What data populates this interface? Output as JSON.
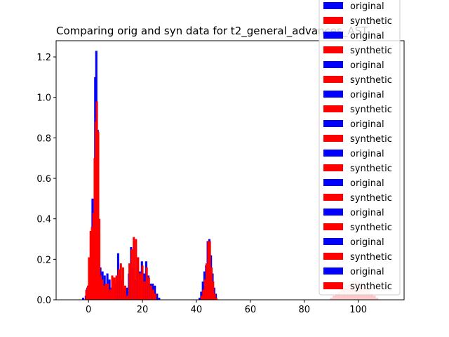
{
  "chart_data": {
    "type": "bar",
    "title": "Comparing orig and syn data for t2_general_advances_AST",
    "xlabel": "",
    "ylabel": "",
    "xlim": [
      -12,
      117
    ],
    "ylim": [
      0,
      1.28
    ],
    "xticks": [
      0,
      20,
      40,
      60,
      80,
      100
    ],
    "yticks": [
      0.0,
      0.2,
      0.4,
      0.6,
      0.8,
      1.0,
      1.2
    ],
    "grid": false,
    "legend_position": "upper right",
    "colors": {
      "original": "#0000ff",
      "synthetic": "#ff0000",
      "faded_synthetic": "#ffc8c8"
    },
    "series": [
      {
        "name": "original",
        "bin_width": 0.8,
        "points": [
          [
            -2,
            0.01
          ],
          [
            -1,
            0.02
          ],
          [
            -0.4,
            0.06
          ],
          [
            0.4,
            0.03
          ],
          [
            1.0,
            0.13
          ],
          [
            1.5,
            0.5
          ],
          [
            2.0,
            0.3
          ],
          [
            2.5,
            1.1
          ],
          [
            2.9,
            1.23
          ],
          [
            3.4,
            0.84
          ],
          [
            3.8,
            0.27
          ],
          [
            4.4,
            0.16
          ],
          [
            5.2,
            0.14
          ],
          [
            6.0,
            0.12
          ],
          [
            7.0,
            0.13
          ],
          [
            7.8,
            0.1
          ],
          [
            8.6,
            0.06
          ],
          [
            9.4,
            0.04
          ],
          [
            10.2,
            0.08
          ],
          [
            11.0,
            0.23
          ],
          [
            11.8,
            0.15
          ],
          [
            12.6,
            0.1
          ],
          [
            13.4,
            0.05
          ],
          [
            14.2,
            0.06
          ],
          [
            15.0,
            0.13
          ],
          [
            15.8,
            0.26
          ],
          [
            16.6,
            0.16
          ],
          [
            17.4,
            0.1
          ],
          [
            18.2,
            0.21
          ],
          [
            19.0,
            0.14
          ],
          [
            19.8,
            0.19
          ],
          [
            20.6,
            0.13
          ],
          [
            21.4,
            0.19
          ],
          [
            22.2,
            0.12
          ],
          [
            23.0,
            0.08
          ],
          [
            23.8,
            0.08
          ],
          [
            24.6,
            0.07
          ],
          [
            25.4,
            0.03
          ],
          [
            26.2,
            0.01
          ],
          [
            41.2,
            0.01
          ],
          [
            41.8,
            0.04
          ],
          [
            42.4,
            0.09
          ],
          [
            43.0,
            0.14
          ],
          [
            43.6,
            0.17
          ],
          [
            44.2,
            0.29
          ],
          [
            44.8,
            0.3
          ],
          [
            45.4,
            0.22
          ],
          [
            46.0,
            0.13
          ],
          [
            46.6,
            0.06
          ],
          [
            47.2,
            0.03
          ]
        ]
      },
      {
        "name": "synthetic",
        "bin_width": 0.8,
        "points": [
          [
            -0.8,
            0.05
          ],
          [
            -0.2,
            0.07
          ],
          [
            0.2,
            0.21
          ],
          [
            0.8,
            0.34
          ],
          [
            1.3,
            0.36
          ],
          [
            1.8,
            0.43
          ],
          [
            2.3,
            0.7
          ],
          [
            2.7,
            0.88
          ],
          [
            3.1,
            0.98
          ],
          [
            3.6,
            0.83
          ],
          [
            4.0,
            0.4
          ],
          [
            4.5,
            0.12
          ],
          [
            5.1,
            0.1
          ],
          [
            5.8,
            0.07
          ],
          [
            6.5,
            0.08
          ],
          [
            7.2,
            0.08
          ],
          [
            8.0,
            0.05
          ],
          [
            8.8,
            0.12
          ],
          [
            9.6,
            0.11
          ],
          [
            10.4,
            0.12
          ],
          [
            11.2,
            0.15
          ],
          [
            12.0,
            0.18
          ],
          [
            12.8,
            0.16
          ],
          [
            13.6,
            0.07
          ],
          [
            14.4,
            0.02
          ],
          [
            15.2,
            0.18
          ],
          [
            16.0,
            0.25
          ],
          [
            16.8,
            0.31
          ],
          [
            17.6,
            0.3
          ],
          [
            18.4,
            0.21
          ],
          [
            19.2,
            0.13
          ],
          [
            20.0,
            0.17
          ],
          [
            20.8,
            0.09
          ],
          [
            21.6,
            0.16
          ],
          [
            22.4,
            0.11
          ],
          [
            23.2,
            0.07
          ],
          [
            24.0,
            0.05
          ],
          [
            24.8,
            0.03
          ],
          [
            42.0,
            0.02
          ],
          [
            42.6,
            0.05
          ],
          [
            43.2,
            0.1
          ],
          [
            43.8,
            0.18
          ],
          [
            44.4,
            0.29
          ],
          [
            45.0,
            0.29
          ],
          [
            45.6,
            0.16
          ],
          [
            46.2,
            0.09
          ],
          [
            46.8,
            0.03
          ],
          [
            47.4,
            0.01
          ]
        ]
      },
      {
        "name": "synthetic (faded)",
        "bin_width": 1.0,
        "points": [
          [
            90,
            0.01
          ],
          [
            91,
            0.02
          ],
          [
            92,
            0.03
          ],
          [
            93,
            0.04
          ],
          [
            94,
            0.05
          ],
          [
            95,
            0.06
          ],
          [
            96,
            0.07
          ],
          [
            97,
            0.08
          ],
          [
            98,
            0.09
          ],
          [
            99,
            0.1
          ],
          [
            100,
            0.09
          ],
          [
            101,
            0.08
          ],
          [
            102,
            0.07
          ],
          [
            103,
            0.06
          ],
          [
            104,
            0.05
          ],
          [
            105,
            0.03
          ],
          [
            106,
            0.02
          ],
          [
            107,
            0.01
          ]
        ]
      }
    ],
    "legend_entries": [
      {
        "label": "original",
        "color": "#0000ff"
      },
      {
        "label": "synthetic",
        "color": "#ff0000"
      },
      {
        "label": "original",
        "color": "#0000ff"
      },
      {
        "label": "synthetic",
        "color": "#ff0000"
      },
      {
        "label": "original",
        "color": "#0000ff"
      },
      {
        "label": "synthetic",
        "color": "#ff0000"
      },
      {
        "label": "original",
        "color": "#0000ff"
      },
      {
        "label": "synthetic",
        "color": "#ff0000"
      },
      {
        "label": "original",
        "color": "#0000ff"
      },
      {
        "label": "synthetic",
        "color": "#ff0000"
      },
      {
        "label": "original",
        "color": "#0000ff"
      },
      {
        "label": "synthetic",
        "color": "#ff0000"
      },
      {
        "label": "original",
        "color": "#0000ff"
      },
      {
        "label": "synthetic",
        "color": "#ff0000"
      },
      {
        "label": "original",
        "color": "#0000ff"
      },
      {
        "label": "synthetic",
        "color": "#ff0000"
      },
      {
        "label": "original",
        "color": "#0000ff"
      },
      {
        "label": "synthetic",
        "color": "#ff0000"
      },
      {
        "label": "original",
        "color": "#0000ff"
      },
      {
        "label": "synthetic",
        "color": "#ff0000"
      }
    ]
  }
}
